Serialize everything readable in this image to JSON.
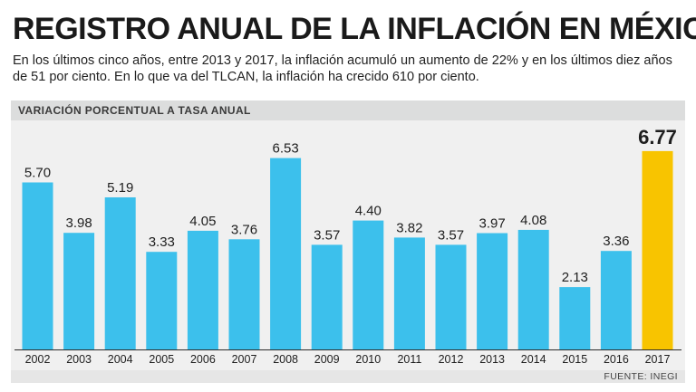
{
  "header": {
    "title": "REGISTRO ANUAL DE LA INFLACIÓN EN MÉXICO",
    "subtitle": "En los últimos cinco años, entre 2013 y 2017, la inflación acumuló un aumento de 22% y en los últimos diez años de 51 por ciento. En lo que va del TLCAN, la inflación ha crecido 610 por ciento."
  },
  "section_label": "VARIACIÓN PORCENTUAL A TASA ANUAL",
  "source": "FUENTE: INEGI",
  "colors": {
    "bar": "#3cc0ec",
    "highlight": "#f8c400",
    "axis": "#2a2a2a",
    "label": "#1e1e1e"
  },
  "chart_data": {
    "type": "bar",
    "title": "VARIACIÓN PORCENTUAL A TASA ANUAL",
    "xlabel": "",
    "ylabel": "",
    "ylim": [
      0,
      7.6
    ],
    "grid": false,
    "categories": [
      "2002",
      "2003",
      "2004",
      "2005",
      "2006",
      "2007",
      "2008",
      "2009",
      "2010",
      "2011",
      "2012",
      "2013",
      "2014",
      "2015",
      "2016",
      "2017"
    ],
    "values": [
      5.7,
      3.98,
      5.19,
      3.33,
      4.05,
      3.76,
      6.53,
      3.57,
      4.4,
      3.82,
      3.57,
      3.97,
      4.08,
      2.13,
      3.36,
      6.77
    ],
    "value_labels": [
      "5.70",
      "3.98",
      "5.19",
      "3.33",
      "4.05",
      "3.76",
      "6.53",
      "3.57",
      "4.40",
      "3.82",
      "3.57",
      "3.97",
      "4.08",
      "2.13",
      "3.36",
      "6.77"
    ],
    "highlight_category": "2017"
  }
}
